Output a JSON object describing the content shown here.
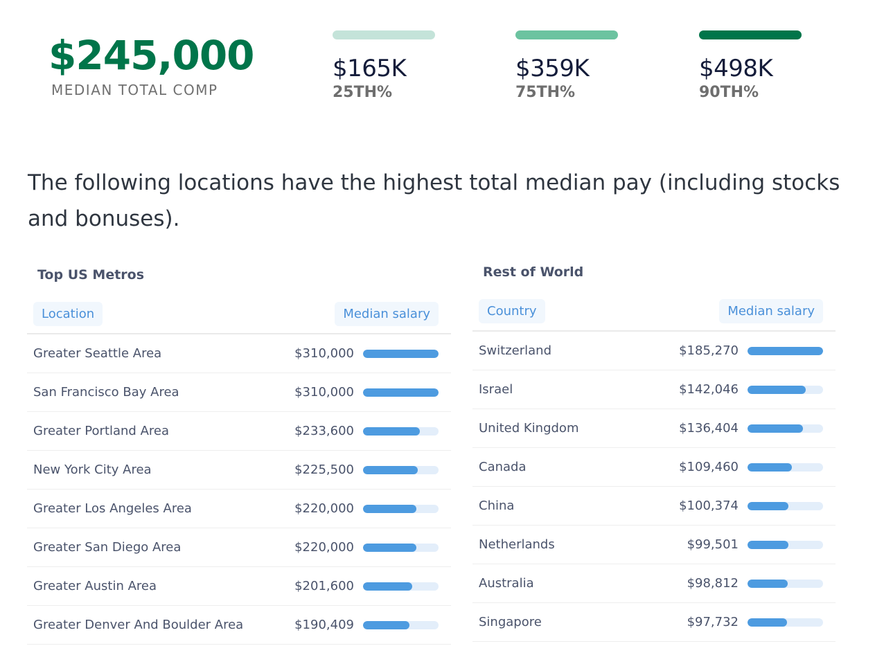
{
  "summary": {
    "median_value": "$245,000",
    "median_label": "MEDIAN TOTAL COMP",
    "percentiles": [
      {
        "value": "$165K",
        "label": "25TH%",
        "color": "#c4e3d9"
      },
      {
        "value": "$359K",
        "label": "75TH%",
        "color": "#6cc3a0"
      },
      {
        "value": "$498K",
        "label": "90TH%",
        "color": "#00754a"
      }
    ]
  },
  "intro": "The following locations have the highest total median pay (including stocks and bonuses).",
  "us": {
    "title": "Top US Metros",
    "col1": "Location",
    "col2": "Median salary",
    "rows": [
      {
        "name": "Greater Seattle Area",
        "amount": "$310,000",
        "value": 310000
      },
      {
        "name": "San Francisco Bay Area",
        "amount": "$310,000",
        "value": 310000
      },
      {
        "name": "Greater Portland Area",
        "amount": "$233,600",
        "value": 233600
      },
      {
        "name": "New York City Area",
        "amount": "$225,500",
        "value": 225500
      },
      {
        "name": "Greater Los Angeles Area",
        "amount": "$220,000",
        "value": 220000
      },
      {
        "name": "Greater San Diego Area",
        "amount": "$220,000",
        "value": 220000
      },
      {
        "name": "Greater Austin Area",
        "amount": "$201,600",
        "value": 201600
      },
      {
        "name": "Greater Denver And Boulder Area",
        "amount": "$190,409",
        "value": 190409
      }
    ]
  },
  "world": {
    "title": "Rest of World",
    "col1": "Country",
    "col2": "Median salary",
    "rows": [
      {
        "name": "Switzerland",
        "amount": "$185,270",
        "value": 185270
      },
      {
        "name": "Israel",
        "amount": "$142,046",
        "value": 142046
      },
      {
        "name": "United Kingdom",
        "amount": "$136,404",
        "value": 136404
      },
      {
        "name": "Canada",
        "amount": "$109,460",
        "value": 109460
      },
      {
        "name": "China",
        "amount": "$100,374",
        "value": 100374
      },
      {
        "name": "Netherlands",
        "amount": "$99,501",
        "value": 99501
      },
      {
        "name": "Australia",
        "amount": "$98,812",
        "value": 98812
      },
      {
        "name": "Singapore",
        "amount": "$97,732",
        "value": 97732
      }
    ]
  }
}
